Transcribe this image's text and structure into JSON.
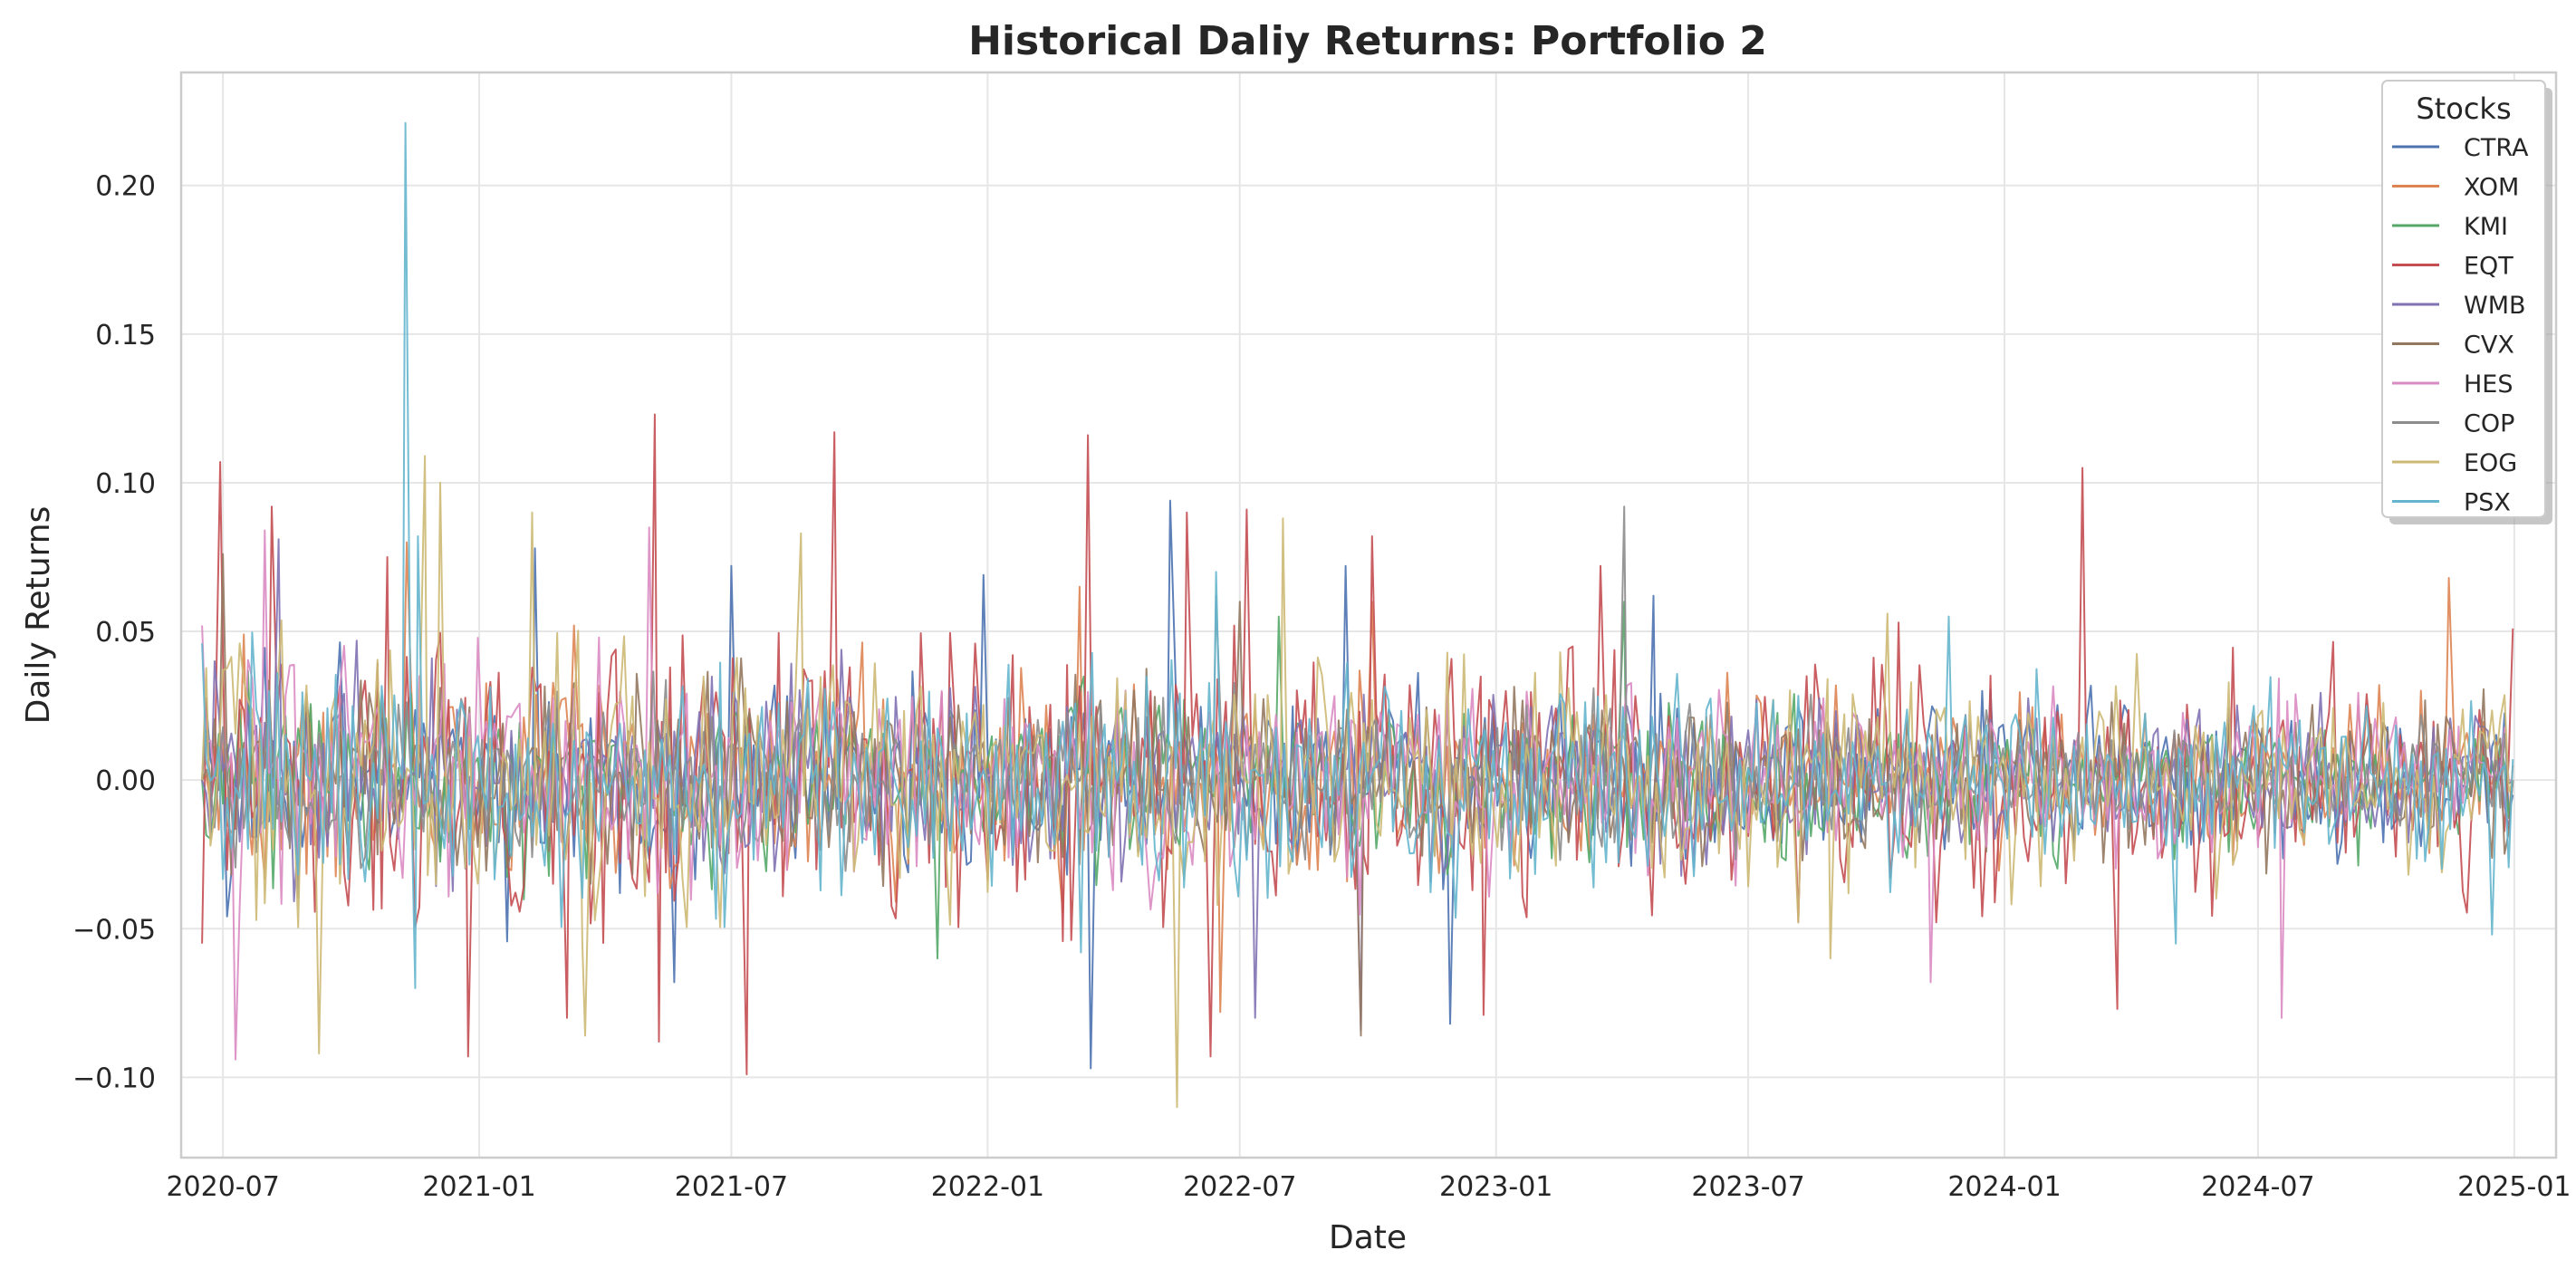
{
  "chart_data": {
    "type": "line",
    "title": "Historical Daliy Returns: Portfolio 2",
    "xlabel": "Date",
    "ylabel": "Daily Returns",
    "x_range": [
      "2020-06-01",
      "2025-01-31"
    ],
    "ylim": [
      -0.127,
      0.238
    ],
    "x_ticks": [
      "2020-07",
      "2021-01",
      "2021-07",
      "2022-01",
      "2022-07",
      "2023-01",
      "2023-07",
      "2024-01",
      "2024-07",
      "2025-01"
    ],
    "x_tick_dates": [
      "2020-07-01",
      "2021-01-01",
      "2021-07-01",
      "2022-01-01",
      "2022-07-01",
      "2023-01-01",
      "2023-07-01",
      "2024-01-01",
      "2024-07-01",
      "2025-01-01"
    ],
    "y_ticks": [
      -0.1,
      -0.05,
      0.0,
      0.05,
      0.1,
      0.15,
      0.2
    ],
    "y_tick_labels": [
      "−0.10",
      "−0.05",
      "0.00",
      "0.05",
      "0.10",
      "0.15",
      "0.20"
    ],
    "grid": true,
    "legend": {
      "title": "Stocks",
      "position": "top-right"
    },
    "series": [
      {
        "name": "CTRA",
        "color": "#4c72b0",
        "spread": 0.017,
        "points": [
          [
            "2020-06-16",
            0.0
          ],
          [
            "2022-03-16",
            -0.097
          ],
          [
            "2022-05-12",
            0.094
          ],
          [
            "2021-02-10",
            0.078
          ],
          [
            "2021-07-01",
            0.072
          ],
          [
            "2021-12-29",
            0.069
          ],
          [
            "2022-09-15",
            0.072
          ],
          [
            "2022-11-29",
            -0.082
          ],
          [
            "2021-05-21",
            -0.068
          ],
          [
            "2023-04-24",
            0.062
          ],
          [
            "2024-12-31",
            -0.005
          ]
        ]
      },
      {
        "name": "XOM",
        "color": "#dd8452",
        "spread": 0.016,
        "points": [
          [
            "2020-06-16",
            0.0
          ],
          [
            "2020-11-10",
            0.08
          ],
          [
            "2021-03-10",
            0.052
          ],
          [
            "2022-03-08",
            0.065
          ],
          [
            "2022-06-17",
            -0.078
          ],
          [
            "2022-10-04",
            0.06
          ],
          [
            "2024-11-15",
            0.068
          ],
          [
            "2024-12-31",
            0.005
          ]
        ]
      },
      {
        "name": "KMI",
        "color": "#55a868",
        "spread": 0.014,
        "points": [
          [
            "2020-06-16",
            0.0
          ],
          [
            "2021-11-26",
            -0.06
          ],
          [
            "2022-07-29",
            0.055
          ],
          [
            "2023-04-03",
            0.06
          ],
          [
            "2024-12-31",
            0.0
          ]
        ]
      },
      {
        "name": "EQT",
        "color": "#c44e52",
        "spread": 0.024,
        "points": [
          [
            "2020-06-16",
            -0.055
          ],
          [
            "2020-06-29",
            0.107
          ],
          [
            "2020-08-05",
            0.092
          ],
          [
            "2020-10-27",
            0.075
          ],
          [
            "2020-12-24",
            -0.093
          ],
          [
            "2021-03-05",
            -0.08
          ],
          [
            "2021-05-07",
            0.123
          ],
          [
            "2021-05-10",
            -0.088
          ],
          [
            "2021-07-12",
            -0.099
          ],
          [
            "2021-09-13",
            0.117
          ],
          [
            "2022-03-14",
            0.116
          ],
          [
            "2022-05-24",
            0.09
          ],
          [
            "2022-06-10",
            -0.093
          ],
          [
            "2022-07-06",
            0.091
          ],
          [
            "2022-10-04",
            0.082
          ],
          [
            "2022-12-23",
            -0.079
          ],
          [
            "2023-03-17",
            0.072
          ],
          [
            "2024-02-26",
            0.105
          ],
          [
            "2024-03-22",
            -0.077
          ],
          [
            "2024-12-31",
            0.051
          ]
        ]
      },
      {
        "name": "WMB",
        "color": "#8172b3",
        "spread": 0.015,
        "points": [
          [
            "2020-06-16",
            0.0
          ],
          [
            "2020-08-10",
            0.081
          ],
          [
            "2022-07-12",
            -0.08
          ],
          [
            "2022-09-26",
            -0.084
          ],
          [
            "2024-12-31",
            0.0
          ]
        ]
      },
      {
        "name": "CVX",
        "color": "#937860",
        "spread": 0.015,
        "points": [
          [
            "2020-06-16",
            0.0
          ],
          [
            "2020-07-01",
            0.076
          ],
          [
            "2022-07-01",
            0.06
          ],
          [
            "2022-09-26",
            -0.086
          ],
          [
            "2024-12-31",
            0.0
          ]
        ]
      },
      {
        "name": "HES",
        "color": "#da8bc3",
        "spread": 0.017,
        "points": [
          [
            "2020-06-16",
            0.052
          ],
          [
            "2020-07-10",
            -0.094
          ],
          [
            "2020-07-31",
            0.084
          ],
          [
            "2021-05-03",
            0.085
          ],
          [
            "2023-11-09",
            -0.068
          ],
          [
            "2024-07-18",
            -0.08
          ],
          [
            "2024-12-31",
            0.0
          ]
        ]
      },
      {
        "name": "COP",
        "color": "#8c8c8c",
        "spread": 0.013,
        "points": [
          [
            "2020-06-16",
            0.0
          ],
          [
            "2022-06-14",
            0.062
          ],
          [
            "2023-04-03",
            0.092
          ],
          [
            "2024-12-31",
            0.0
          ]
        ]
      },
      {
        "name": "EOG",
        "color": "#ccb974",
        "spread": 0.021,
        "points": [
          [
            "2020-06-16",
            0.0
          ],
          [
            "2020-09-08",
            -0.092
          ],
          [
            "2020-11-23",
            0.109
          ],
          [
            "2020-12-04",
            0.1
          ],
          [
            "2021-02-08",
            0.09
          ],
          [
            "2021-03-18",
            -0.086
          ],
          [
            "2021-08-20",
            0.083
          ],
          [
            "2022-05-17",
            -0.11
          ],
          [
            "2022-08-01",
            0.088
          ],
          [
            "2023-08-29",
            -0.06
          ],
          [
            "2023-10-09",
            0.056
          ],
          [
            "2024-12-31",
            0.0
          ]
        ]
      },
      {
        "name": "PSX",
        "color": "#64b5cd",
        "spread": 0.019,
        "points": [
          [
            "2020-06-16",
            0.046
          ],
          [
            "2020-11-09",
            0.221
          ],
          [
            "2020-11-16",
            -0.07
          ],
          [
            "2020-11-18",
            0.082
          ],
          [
            "2022-03-09",
            -0.058
          ],
          [
            "2022-06-14",
            0.07
          ],
          [
            "2023-11-22",
            0.055
          ],
          [
            "2024-05-03",
            -0.055
          ],
          [
            "2024-12-16",
            -0.052
          ],
          [
            "2024-12-31",
            0.007
          ]
        ]
      }
    ]
  }
}
